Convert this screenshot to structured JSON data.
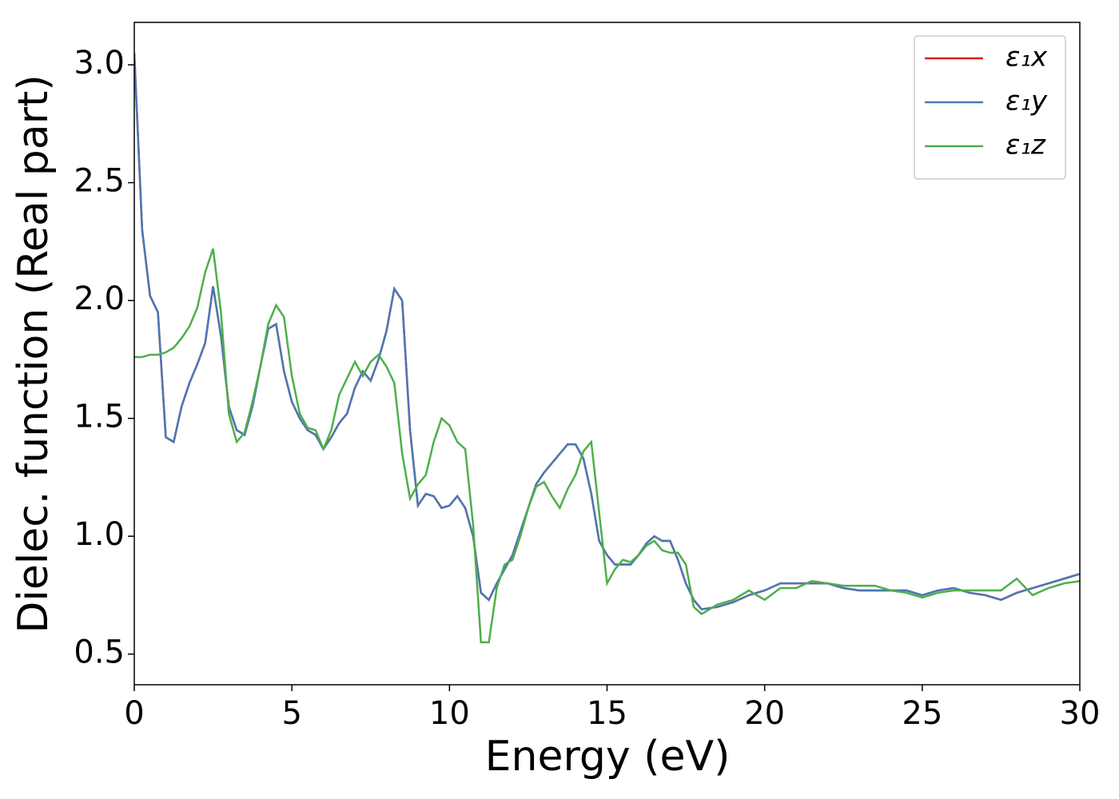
{
  "chart_data": {
    "type": "line",
    "xlabel": "Energy (eV)",
    "ylabel": "Dielec. function (Real part)",
    "xlim": [
      0,
      30
    ],
    "ylim": [
      0.37,
      3.18
    ],
    "xticks": [
      0,
      5,
      10,
      15,
      20,
      25,
      30
    ],
    "yticks": [
      0.5,
      {
        "value": 1,
        "label": "1.0"
      },
      1.5,
      {
        "value": 2,
        "label": "2.0"
      },
      2.5,
      {
        "value": 3,
        "label": "3.0"
      }
    ],
    "legend": "upper right",
    "x": [
      0,
      0.25,
      0.5,
      0.75,
      1,
      1.25,
      1.5,
      1.75,
      2,
      2.25,
      2.5,
      2.75,
      3,
      3.25,
      3.5,
      3.75,
      4,
      4.25,
      4.5,
      4.75,
      5,
      5.25,
      5.5,
      5.75,
      6,
      6.25,
      6.5,
      6.75,
      7,
      7.25,
      7.5,
      7.75,
      8,
      8.25,
      8.5,
      8.75,
      9,
      9.25,
      9.5,
      9.75,
      10,
      10.25,
      10.5,
      10.75,
      11,
      11.25,
      11.5,
      11.75,
      12,
      12.25,
      12.5,
      12.75,
      13,
      13.25,
      13.5,
      13.75,
      14,
      14.25,
      14.5,
      14.75,
      15,
      15.25,
      15.5,
      15.75,
      16,
      16.25,
      16.5,
      16.75,
      17,
      17.25,
      17.5,
      17.75,
      18,
      18.5,
      19,
      19.5,
      20,
      20.5,
      21,
      21.5,
      22,
      22.5,
      23,
      23.5,
      24,
      24.5,
      25,
      25.5,
      26,
      26.5,
      27,
      27.5,
      28,
      28.5,
      29,
      29.5,
      30
    ],
    "series": [
      {
        "name": "ε₁x",
        "color": "#e41a1c",
        "values": [
          3.05,
          2.3,
          2.02,
          1.95,
          1.42,
          1.4,
          1.55,
          1.65,
          1.73,
          1.82,
          2.06,
          1.85,
          1.55,
          1.45,
          1.43,
          1.55,
          1.72,
          1.88,
          1.9,
          1.7,
          1.57,
          1.5,
          1.45,
          1.43,
          1.37,
          1.42,
          1.48,
          1.52,
          1.63,
          1.7,
          1.66,
          1.75,
          1.87,
          2.05,
          2.0,
          1.45,
          1.13,
          1.18,
          1.17,
          1.12,
          1.13,
          1.17,
          1.12,
          1.0,
          0.76,
          0.73,
          0.8,
          0.86,
          0.92,
          1.02,
          1.12,
          1.22,
          1.27,
          1.31,
          1.35,
          1.39,
          1.39,
          1.33,
          1.18,
          0.98,
          0.92,
          0.88,
          0.88,
          0.88,
          0.92,
          0.97,
          1.0,
          0.98,
          0.98,
          0.9,
          0.8,
          0.73,
          0.69,
          0.7,
          0.72,
          0.75,
          0.77,
          0.8,
          0.8,
          0.8,
          0.8,
          0.78,
          0.77,
          0.77,
          0.77,
          0.77,
          0.75,
          0.77,
          0.78,
          0.76,
          0.75,
          0.73,
          0.76,
          0.78,
          0.8,
          0.82,
          0.84
        ]
      },
      {
        "name": "ε₁y",
        "color": "#4a78b5",
        "values": [
          3.05,
          2.3,
          2.02,
          1.95,
          1.42,
          1.4,
          1.55,
          1.65,
          1.73,
          1.82,
          2.06,
          1.85,
          1.55,
          1.45,
          1.43,
          1.55,
          1.72,
          1.88,
          1.9,
          1.7,
          1.57,
          1.5,
          1.45,
          1.43,
          1.37,
          1.42,
          1.48,
          1.52,
          1.63,
          1.7,
          1.66,
          1.75,
          1.87,
          2.05,
          2.0,
          1.45,
          1.13,
          1.18,
          1.17,
          1.12,
          1.13,
          1.17,
          1.12,
          1.0,
          0.76,
          0.73,
          0.8,
          0.86,
          0.92,
          1.02,
          1.12,
          1.22,
          1.27,
          1.31,
          1.35,
          1.39,
          1.39,
          1.33,
          1.18,
          0.98,
          0.92,
          0.88,
          0.88,
          0.88,
          0.92,
          0.97,
          1.0,
          0.98,
          0.98,
          0.9,
          0.8,
          0.73,
          0.69,
          0.7,
          0.72,
          0.75,
          0.77,
          0.8,
          0.8,
          0.8,
          0.8,
          0.78,
          0.77,
          0.77,
          0.77,
          0.77,
          0.75,
          0.77,
          0.78,
          0.76,
          0.75,
          0.73,
          0.76,
          0.78,
          0.8,
          0.82,
          0.84
        ]
      },
      {
        "name": "ε₁z",
        "color": "#4daf4a",
        "values": [
          1.76,
          1.76,
          1.77,
          1.77,
          1.78,
          1.8,
          1.84,
          1.89,
          1.97,
          2.12,
          2.22,
          1.95,
          1.52,
          1.4,
          1.44,
          1.57,
          1.72,
          1.9,
          1.98,
          1.93,
          1.68,
          1.52,
          1.46,
          1.45,
          1.37,
          1.45,
          1.6,
          1.67,
          1.74,
          1.68,
          1.74,
          1.77,
          1.72,
          1.65,
          1.35,
          1.16,
          1.22,
          1.26,
          1.4,
          1.5,
          1.47,
          1.4,
          1.37,
          1.05,
          0.55,
          0.55,
          0.78,
          0.88,
          0.9,
          1.0,
          1.12,
          1.21,
          1.23,
          1.17,
          1.12,
          1.2,
          1.26,
          1.36,
          1.4,
          1.1,
          0.8,
          0.86,
          0.9,
          0.89,
          0.92,
          0.96,
          0.98,
          0.94,
          0.93,
          0.93,
          0.88,
          0.7,
          0.67,
          0.71,
          0.73,
          0.77,
          0.73,
          0.78,
          0.78,
          0.81,
          0.8,
          0.79,
          0.79,
          0.79,
          0.77,
          0.76,
          0.74,
          0.76,
          0.77,
          0.77,
          0.77,
          0.77,
          0.82,
          0.75,
          0.78,
          0.8,
          0.81
        ]
      }
    ]
  }
}
